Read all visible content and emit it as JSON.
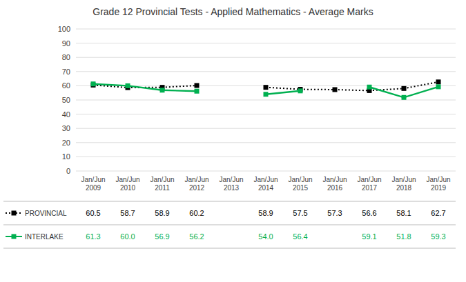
{
  "chart_data": {
    "type": "line",
    "title": "Grade 12 Provincial Tests - Applied Mathematics - Average Marks",
    "categories": [
      "Jan/Jun\n2009",
      "Jan/Jun\n2010",
      "Jan/Jun\n2011",
      "Jan/Jun\n2012",
      "Jan/Jun\n2013",
      "Jan/Jun\n2014",
      "Jan/Jun\n2015",
      "Jan/Jun\n2016",
      "Jan/Jun\n2017",
      "Jan/Jun\n2018",
      "Jan/Jun\n2019"
    ],
    "series": [
      {
        "name": "PROVINCIAL",
        "color": "#000000",
        "line_style": "dotted",
        "marker": "square",
        "values": [
          60.5,
          58.7,
          58.9,
          60.2,
          null,
          58.9,
          57.5,
          57.3,
          56.6,
          58.1,
          62.7
        ],
        "value_labels": [
          "60.5",
          "58.7",
          "58.9",
          "60.2",
          null,
          "58.9",
          "57.5",
          "57.3",
          "56.6",
          "58.1",
          "62.7"
        ]
      },
      {
        "name": "INTERLAKE",
        "color": "#00b050",
        "line_style": "solid",
        "marker": "square",
        "values": [
          61.3,
          60.0,
          56.9,
          56.2,
          null,
          54.0,
          56.4,
          null,
          59.1,
          51.8,
          59.3
        ],
        "value_labels": [
          "61.3",
          "60.0",
          "56.9",
          "56.2",
          null,
          "54.0",
          "56.4",
          null,
          "59.1",
          "51.8",
          "59.3"
        ]
      }
    ],
    "ylim": [
      0,
      100
    ],
    "yticks": [
      0,
      10,
      20,
      30,
      40,
      50,
      60,
      70,
      80,
      90,
      100
    ],
    "grid": true,
    "data_labels": true,
    "legend": "bottom"
  }
}
